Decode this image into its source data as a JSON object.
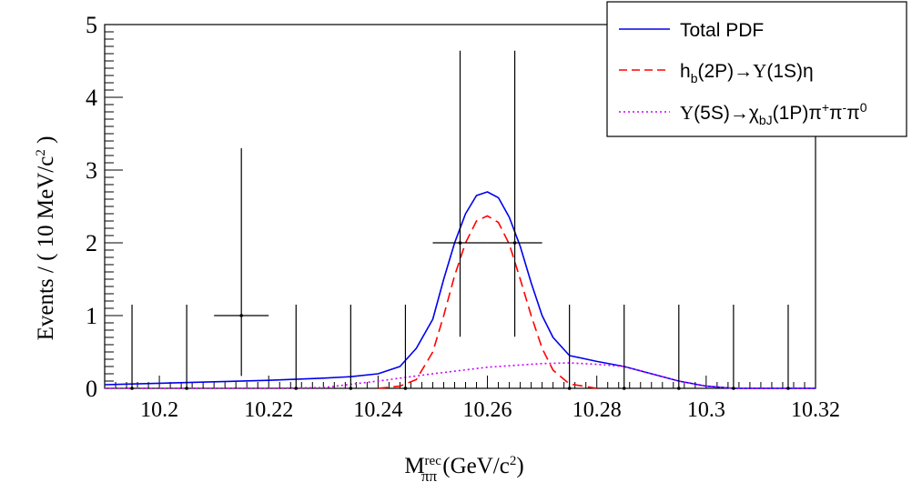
{
  "chart_data": {
    "type": "line",
    "xlabel": {
      "main": "M",
      "sup": "rec",
      "sub": "ππ",
      "unit_prefix": " (GeV/c",
      "unit_sup": "2",
      "unit_suffix": ")"
    },
    "ylabel": {
      "prefix": "Events / ( 10 MeV/c",
      "sup": "2",
      "suffix": " )"
    },
    "xlim": [
      10.19,
      10.32
    ],
    "ylim": [
      0,
      5
    ],
    "x_ticks": [
      {
        "value": 10.2,
        "label": "10.2"
      },
      {
        "value": 10.22,
        "label": "10.22"
      },
      {
        "value": 10.24,
        "label": "10.24"
      },
      {
        "value": 10.26,
        "label": "10.26"
      },
      {
        "value": 10.28,
        "label": "10.28"
      },
      {
        "value": 10.3,
        "label": "10.3"
      },
      {
        "value": 10.32,
        "label": "10.32"
      }
    ],
    "y_ticks": [
      {
        "value": 0,
        "label": "0"
      },
      {
        "value": 1,
        "label": "1"
      },
      {
        "value": 2,
        "label": "2"
      },
      {
        "value": 3,
        "label": "3"
      },
      {
        "value": 4,
        "label": "4"
      },
      {
        "value": 5,
        "label": "5"
      }
    ],
    "data_points": [
      {
        "x": 10.195,
        "y": 0,
        "xerr": 0,
        "ylo": 0,
        "yhi": 1.15
      },
      {
        "x": 10.205,
        "y": 0,
        "xerr": 0,
        "ylo": 0,
        "yhi": 1.15
      },
      {
        "x": 10.215,
        "y": 1,
        "xerr": 0.005,
        "ylo": 0.83,
        "yhi": 2.3
      },
      {
        "x": 10.225,
        "y": 0,
        "xerr": 0,
        "ylo": 0,
        "yhi": 1.15
      },
      {
        "x": 10.235,
        "y": 0,
        "xerr": 0,
        "ylo": 0,
        "yhi": 1.15
      },
      {
        "x": 10.245,
        "y": 0,
        "xerr": 0,
        "ylo": 0,
        "yhi": 1.15
      },
      {
        "x": 10.255,
        "y": 2,
        "xerr": 0.005,
        "ylo": 1.29,
        "yhi": 2.64
      },
      {
        "x": 10.265,
        "y": 2,
        "xerr": 0.005,
        "ylo": 1.29,
        "yhi": 2.64
      },
      {
        "x": 10.275,
        "y": 0,
        "xerr": 0,
        "ylo": 0,
        "yhi": 1.15
      },
      {
        "x": 10.285,
        "y": 0,
        "xerr": 0,
        "ylo": 0,
        "yhi": 1.15
      },
      {
        "x": 10.295,
        "y": 0,
        "xerr": 0,
        "ylo": 0,
        "yhi": 1.15
      },
      {
        "x": 10.305,
        "y": 0,
        "xerr": 0,
        "ylo": 0,
        "yhi": 1.15
      },
      {
        "x": 10.315,
        "y": 0,
        "xerr": 0,
        "ylo": 0,
        "yhi": 1.15
      }
    ],
    "series": [
      {
        "name": "Total PDF",
        "color": "#0000ee",
        "dash": "solid",
        "x": [
          10.19,
          10.2,
          10.21,
          10.22,
          10.23,
          10.235,
          10.24,
          10.244,
          10.247,
          10.25,
          10.252,
          10.254,
          10.256,
          10.258,
          10.26,
          10.262,
          10.264,
          10.266,
          10.268,
          10.27,
          10.272,
          10.275,
          10.28,
          10.285,
          10.29,
          10.295,
          10.3,
          10.305,
          10.31,
          10.32
        ],
        "y": [
          0.05,
          0.07,
          0.09,
          0.11,
          0.14,
          0.16,
          0.2,
          0.3,
          0.55,
          0.95,
          1.5,
          2.0,
          2.4,
          2.65,
          2.7,
          2.62,
          2.35,
          1.95,
          1.45,
          1.0,
          0.7,
          0.45,
          0.37,
          0.3,
          0.2,
          0.1,
          0.03,
          0.0,
          0.0,
          0.0
        ]
      },
      {
        "name": "h_b(2P)→Υ(1S)η",
        "color": "#ff0000",
        "dash": "dashed",
        "x": [
          10.24,
          10.244,
          10.247,
          10.25,
          10.252,
          10.254,
          10.256,
          10.258,
          10.26,
          10.262,
          10.264,
          10.266,
          10.268,
          10.27,
          10.272,
          10.275,
          10.28
        ],
        "y": [
          0.0,
          0.03,
          0.12,
          0.5,
          1.0,
          1.55,
          2.0,
          2.3,
          2.37,
          2.28,
          1.98,
          1.5,
          1.0,
          0.55,
          0.25,
          0.06,
          0.0
        ]
      },
      {
        "name": "Υ(5S)→χbJ(1P)π+π-π0",
        "color": "#cc00ff",
        "dash": "dotted",
        "x": [
          10.19,
          10.2,
          10.21,
          10.22,
          10.23,
          10.24,
          10.25,
          10.26,
          10.27,
          10.275,
          10.28,
          10.285,
          10.29,
          10.295,
          10.3,
          10.305,
          10.31,
          10.32
        ],
        "y": [
          0.0,
          0.0,
          0.0,
          0.0,
          0.01,
          0.1,
          0.2,
          0.29,
          0.34,
          0.35,
          0.33,
          0.3,
          0.2,
          0.1,
          0.03,
          0.0,
          0.0,
          0.0
        ]
      }
    ],
    "legend": {
      "placement": "top-right",
      "entries": [
        {
          "text": "Total PDF"
        },
        {
          "prefix": "h",
          "sub": "b",
          "suffix": "(2P)→",
          "serif": "Υ",
          "tail": "(1S)η"
        },
        {
          "serif": "Υ",
          "prefix": "(5S)→χ",
          "sub": "bJ",
          "suffix": "(1P)π",
          "sup1": "+",
          "mid1": "π",
          "sup2": "-",
          "mid2": "π",
          "sup3": "0"
        }
      ]
    }
  }
}
